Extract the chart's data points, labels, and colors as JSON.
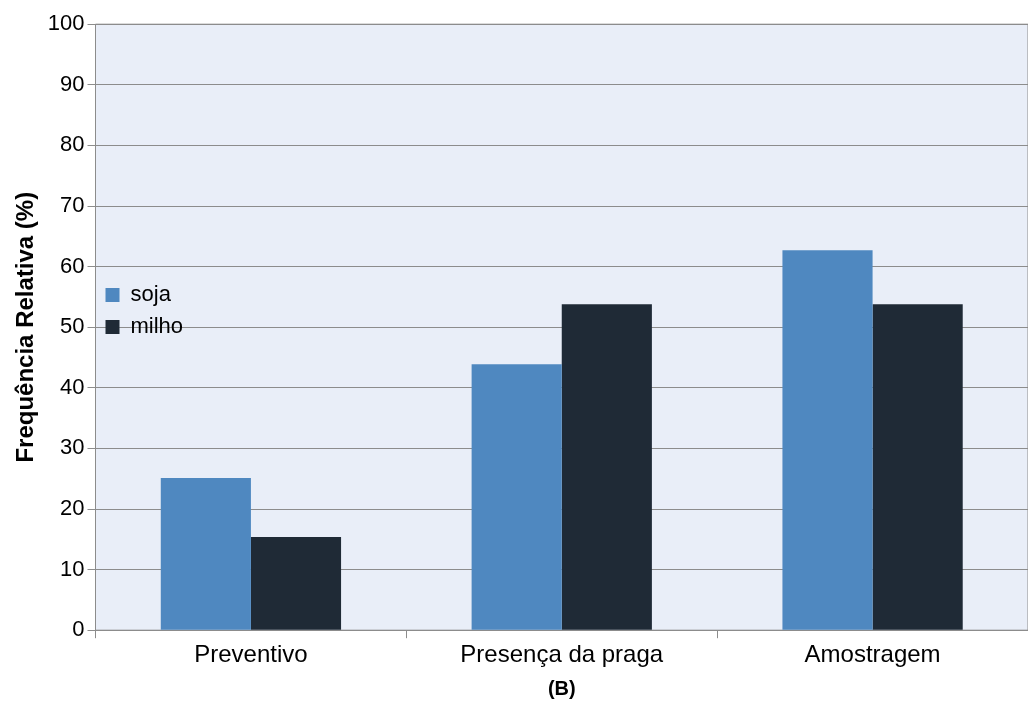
{
  "chart_data": {
    "type": "bar",
    "categories": [
      "Preventivo",
      "Presença da praga",
      "Amostragem"
    ],
    "series": [
      {
        "name": "soja",
        "color": "#4f88c0",
        "values": [
          25.1,
          43.9,
          62.7
        ]
      },
      {
        "name": "milho",
        "color": "#1f2a36",
        "values": [
          15.4,
          53.8,
          53.8
        ]
      }
    ],
    "ylabel": "Frequência Relativa (%)",
    "ylim": [
      0,
      100
    ],
    "yticks": [
      0,
      10,
      20,
      30,
      40,
      50,
      60,
      70,
      80,
      90,
      100
    ],
    "grid": "y",
    "legend": "top",
    "annotations": [
      "(B)"
    ]
  }
}
